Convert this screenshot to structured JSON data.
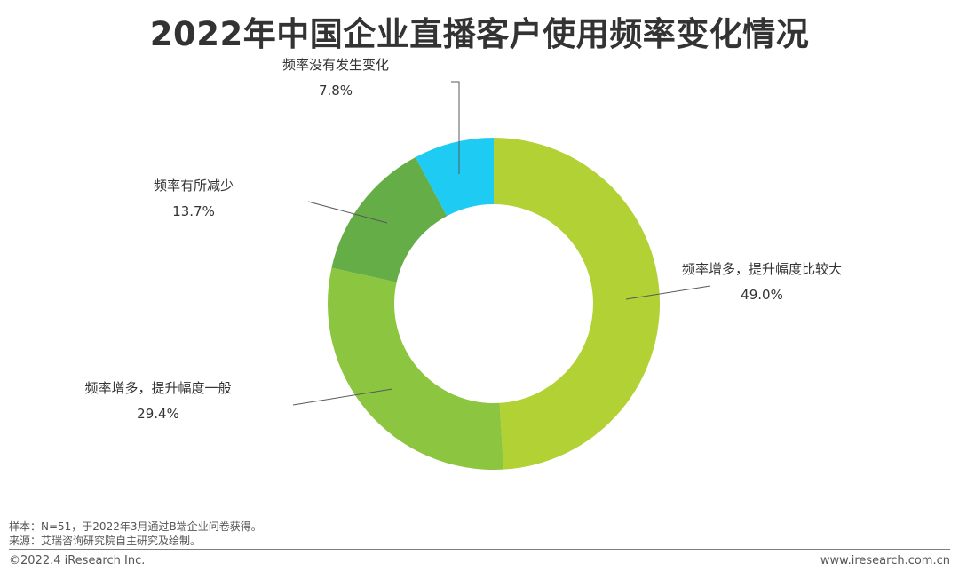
{
  "chart_data": {
    "type": "pie",
    "style": "donut",
    "title": "2022年中国企业直播客户使用频率变化情况",
    "slices": [
      {
        "label": "频率增多，提升幅度比较大",
        "value": 49.0,
        "value_label": "49.0%",
        "color": "#b1d134"
      },
      {
        "label": "频率增多，提升幅度一般",
        "value": 29.4,
        "value_label": "29.4%",
        "color": "#8cc540"
      },
      {
        "label": "频率有所减少",
        "value": 13.7,
        "value_label": "13.7%",
        "color": "#64ad47"
      },
      {
        "label": "频率没有发生变化",
        "value": 7.8,
        "value_label": "7.8%",
        "color": "#1ecbf2"
      }
    ]
  },
  "footer": {
    "note": "样本：N=51，于2022年3月通过B端企业问卷获得。",
    "source": "来源：艾瑞咨询研究院自主研究及绘制。",
    "copyright": "©2022.4 iResearch Inc.",
    "website": "www.iresearch.com.cn"
  }
}
